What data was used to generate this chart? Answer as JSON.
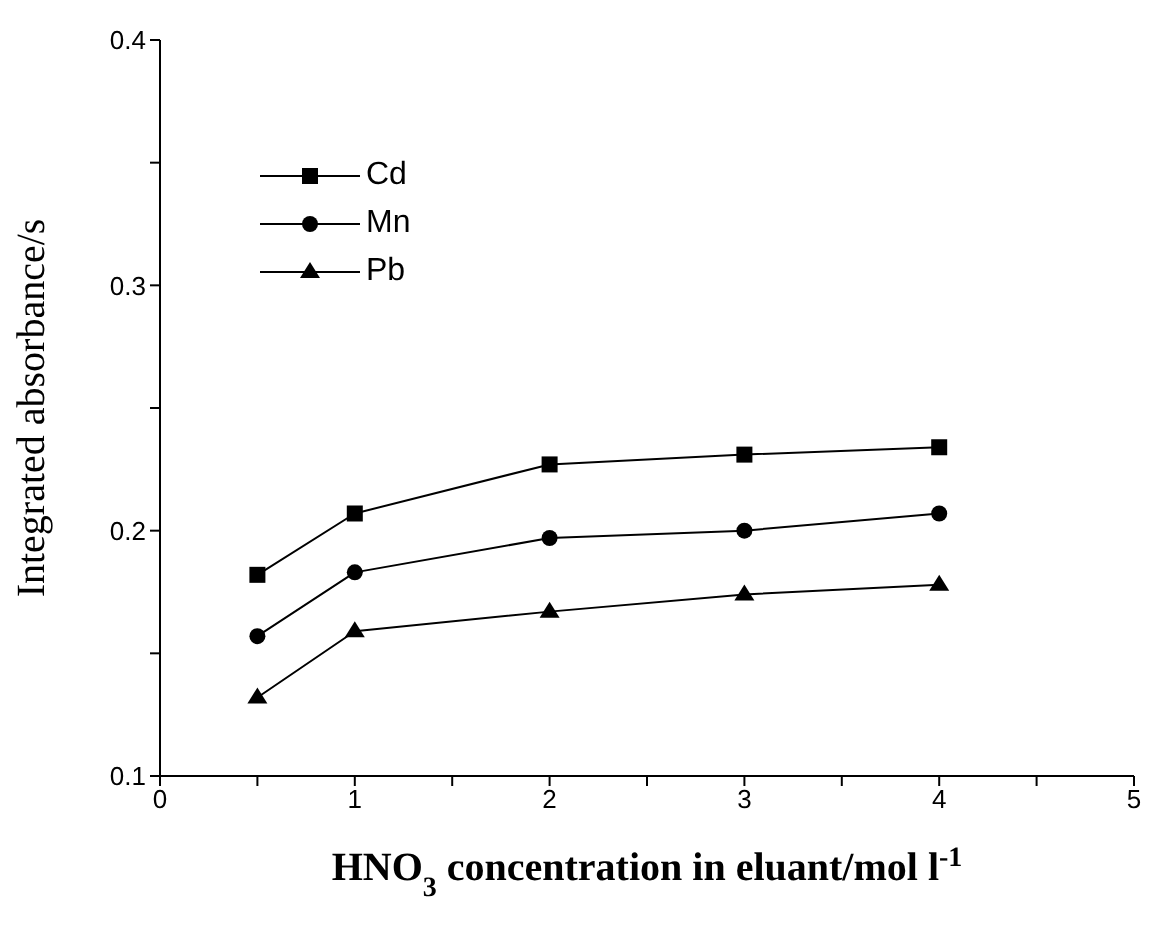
{
  "chart_data": {
    "type": "line",
    "xlabel": "HNO$_{3}$ concentration in eluant/mol l$^{-1}$",
    "ylabel": "Integrated absorbance/s",
    "x": [
      0.5,
      1,
      2,
      3,
      4
    ],
    "series": [
      {
        "name": "Cd",
        "color": "#000000",
        "marker": "square",
        "values": [
          0.182,
          0.207,
          0.227,
          0.231,
          0.234
        ]
      },
      {
        "name": "Mn",
        "color": "#000000",
        "marker": "circle",
        "values": [
          0.157,
          0.183,
          0.197,
          0.2,
          0.207
        ]
      },
      {
        "name": "Pb",
        "color": "#000000",
        "marker": "triangle",
        "values": [
          0.132,
          0.159,
          0.167,
          0.174,
          0.178
        ]
      }
    ],
    "xlim": [
      0,
      5
    ],
    "xticks": [
      0,
      {
        "value": 0.5,
        "label": null
      },
      1,
      {
        "value": 1.5,
        "label": null
      },
      2,
      {
        "value": 2.5,
        "label": null
      },
      3,
      {
        "value": 3.5,
        "label": null
      },
      4,
      {
        "value": 4.5,
        "label": null
      },
      5
    ],
    "ylim": [
      0.1,
      0.4
    ],
    "yticks": [
      0.1,
      {
        "value": 0.15,
        "label": null
      },
      0.2,
      {
        "value": 0.25,
        "label": null
      },
      0.3,
      {
        "value": 0.35,
        "label": null
      },
      0.4
    ],
    "legend": "top left",
    "grid": false,
    "line_style": "solid"
  }
}
